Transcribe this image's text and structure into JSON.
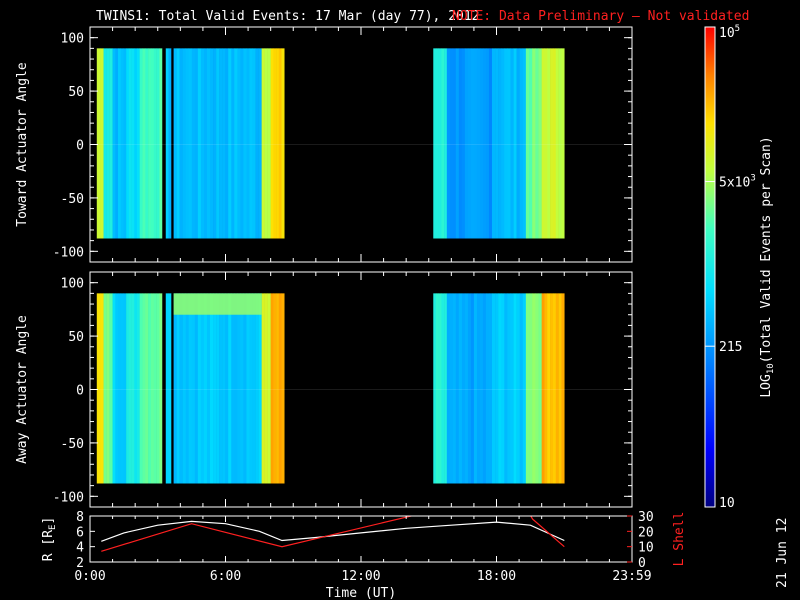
{
  "header": {
    "title": "TWINS1: Total Valid Events: 17 Mar (day  77), 2012",
    "note": "NOTE: Data Preliminary – Not validated",
    "title_color": "#ffffff",
    "note_color": "#ff2020"
  },
  "side_stamp": "21 Jun 12",
  "chart_data": [
    {
      "type": "heatmap",
      "panel": "toward",
      "ylabel": "Toward Actuator Angle",
      "ylim": [
        -110,
        110
      ],
      "xlim": [
        0,
        24
      ],
      "yticks": [
        -100,
        -50,
        0,
        50,
        100
      ],
      "yticklabels": [
        "-100",
        "-50",
        "0",
        "50",
        "100"
      ],
      "data_y_range": [
        -88,
        90
      ],
      "data_segments": [
        {
          "x_start": 0.3,
          "x_end": 8.6
        },
        {
          "x_start": 15.2,
          "x_end": 21.0
        }
      ],
      "gaps": [
        [
          3.2,
          3.35
        ],
        [
          3.6,
          3.7
        ]
      ],
      "columns": [
        {
          "x": [
            0.3,
            0.6
          ],
          "level": 0.72
        },
        {
          "x": [
            0.6,
            1.0
          ],
          "level": 0.52
        },
        {
          "x": [
            1.0,
            1.6
          ],
          "level": 0.4
        },
        {
          "x": [
            1.6,
            2.2
          ],
          "level": 0.46
        },
        {
          "x": [
            2.2,
            3.2
          ],
          "level": 0.58
        },
        {
          "x": [
            3.35,
            3.6
          ],
          "level": 0.4
        },
        {
          "x": [
            3.7,
            7.6
          ],
          "level": 0.4
        },
        {
          "x": [
            7.6,
            8.0
          ],
          "level": 0.72
        },
        {
          "x": [
            8.0,
            8.6
          ],
          "level": 0.8
        },
        {
          "x": [
            15.2,
            15.8
          ],
          "level": 0.52
        },
        {
          "x": [
            15.8,
            17.8
          ],
          "level": 0.34
        },
        {
          "x": [
            17.8,
            19.3
          ],
          "level": 0.4
        },
        {
          "x": [
            19.3,
            20.0
          ],
          "level": 0.62
        },
        {
          "x": [
            20.0,
            21.0
          ],
          "level": 0.72
        }
      ]
    },
    {
      "type": "heatmap",
      "panel": "away",
      "ylabel": "Away Actuator Angle",
      "ylim": [
        -110,
        110
      ],
      "xlim": [
        0,
        24
      ],
      "yticks": [
        -100,
        -50,
        0,
        50,
        100
      ],
      "yticklabels": [
        "-100",
        "-50",
        "0",
        "50",
        "100"
      ],
      "data_y_range": [
        -88,
        90
      ],
      "data_segments": [
        {
          "x_start": 0.3,
          "x_end": 8.6
        },
        {
          "x_start": 15.2,
          "x_end": 21.0
        }
      ],
      "gaps": [
        [
          3.2,
          3.35
        ],
        [
          3.6,
          3.7
        ]
      ],
      "columns": [
        {
          "x": [
            0.3,
            0.6
          ],
          "level": 0.78
        },
        {
          "x": [
            0.6,
            1.0
          ],
          "level": 0.62
        },
        {
          "x": [
            1.0,
            1.6
          ],
          "level": 0.44
        },
        {
          "x": [
            1.6,
            2.2
          ],
          "level": 0.5
        },
        {
          "x": [
            2.2,
            3.2
          ],
          "level": 0.62
        },
        {
          "x": [
            3.35,
            3.6
          ],
          "level": 0.46
        },
        {
          "x": [
            3.7,
            7.6
          ],
          "level": 0.42
        },
        {
          "x": [
            7.6,
            8.0
          ],
          "level": 0.74
        },
        {
          "x": [
            8.0,
            8.6
          ],
          "level": 0.84
        },
        {
          "x": [
            15.2,
            15.8
          ],
          "level": 0.52
        },
        {
          "x": [
            15.8,
            17.8
          ],
          "level": 0.36
        },
        {
          "x": [
            17.8,
            19.3
          ],
          "level": 0.42
        },
        {
          "x": [
            19.3,
            20.0
          ],
          "level": 0.66
        },
        {
          "x": [
            20.0,
            21.0
          ],
          "level": 0.84
        }
      ],
      "band": {
        "x": [
          3.7,
          7.6
        ],
        "y": [
          70,
          90
        ],
        "level": 0.66
      }
    },
    {
      "type": "line",
      "panel": "orbit",
      "xlabel": "Time (UT)",
      "xlim": [
        0,
        24
      ],
      "xticks": [
        0,
        6,
        12,
        18,
        24
      ],
      "xticklabels": [
        "0:00",
        "6:00",
        "12:00",
        "18:00",
        "23:59"
      ],
      "ylabel_left": "R [R",
      "ylabel_left_sub": "E",
      "ylabel_left_end": "]",
      "ylim_left": [
        2,
        8
      ],
      "yticks_left": [
        2,
        4,
        6,
        8
      ],
      "ylabel_right": "L Shell",
      "ylim_right": [
        0,
        30
      ],
      "yticks_right": [
        0,
        10,
        20,
        30
      ],
      "series": [
        {
          "axis": "left",
          "color": "#ffffff",
          "x": [
            0.5,
            1.5,
            3,
            4.5,
            6,
            7.5,
            8.5,
            10,
            12,
            14,
            16,
            18,
            19.5,
            21
          ],
          "y": [
            4.7,
            5.8,
            6.8,
            7.3,
            7.0,
            6.0,
            4.8,
            5.2,
            5.8,
            6.4,
            6.8,
            7.2,
            6.8,
            4.8
          ]
        },
        {
          "axis": "right",
          "color": "#ff2020",
          "x": [
            0.5,
            4.5,
            8.5,
            14.5,
            15.3,
            19.4,
            19.6,
            21
          ],
          "y": [
            7,
            25,
            10,
            31,
            33,
            33,
            28,
            10
          ]
        }
      ]
    },
    {
      "type": "colorbar",
      "panel": "colorbar",
      "label_log": "LOG",
      "label_log_sub": "10",
      "label_rest": "(Total Valid  Events per Scan)",
      "ticks": [
        {
          "base": "10",
          "exp": "5",
          "pos": 1.0
        },
        {
          "base": "5x10",
          "exp": "3",
          "pos": 0.678
        },
        {
          "base": "215",
          "exp": "",
          "pos": 0.335
        },
        {
          "base": "10",
          "exp": "",
          "pos": 0.0
        }
      ]
    }
  ]
}
